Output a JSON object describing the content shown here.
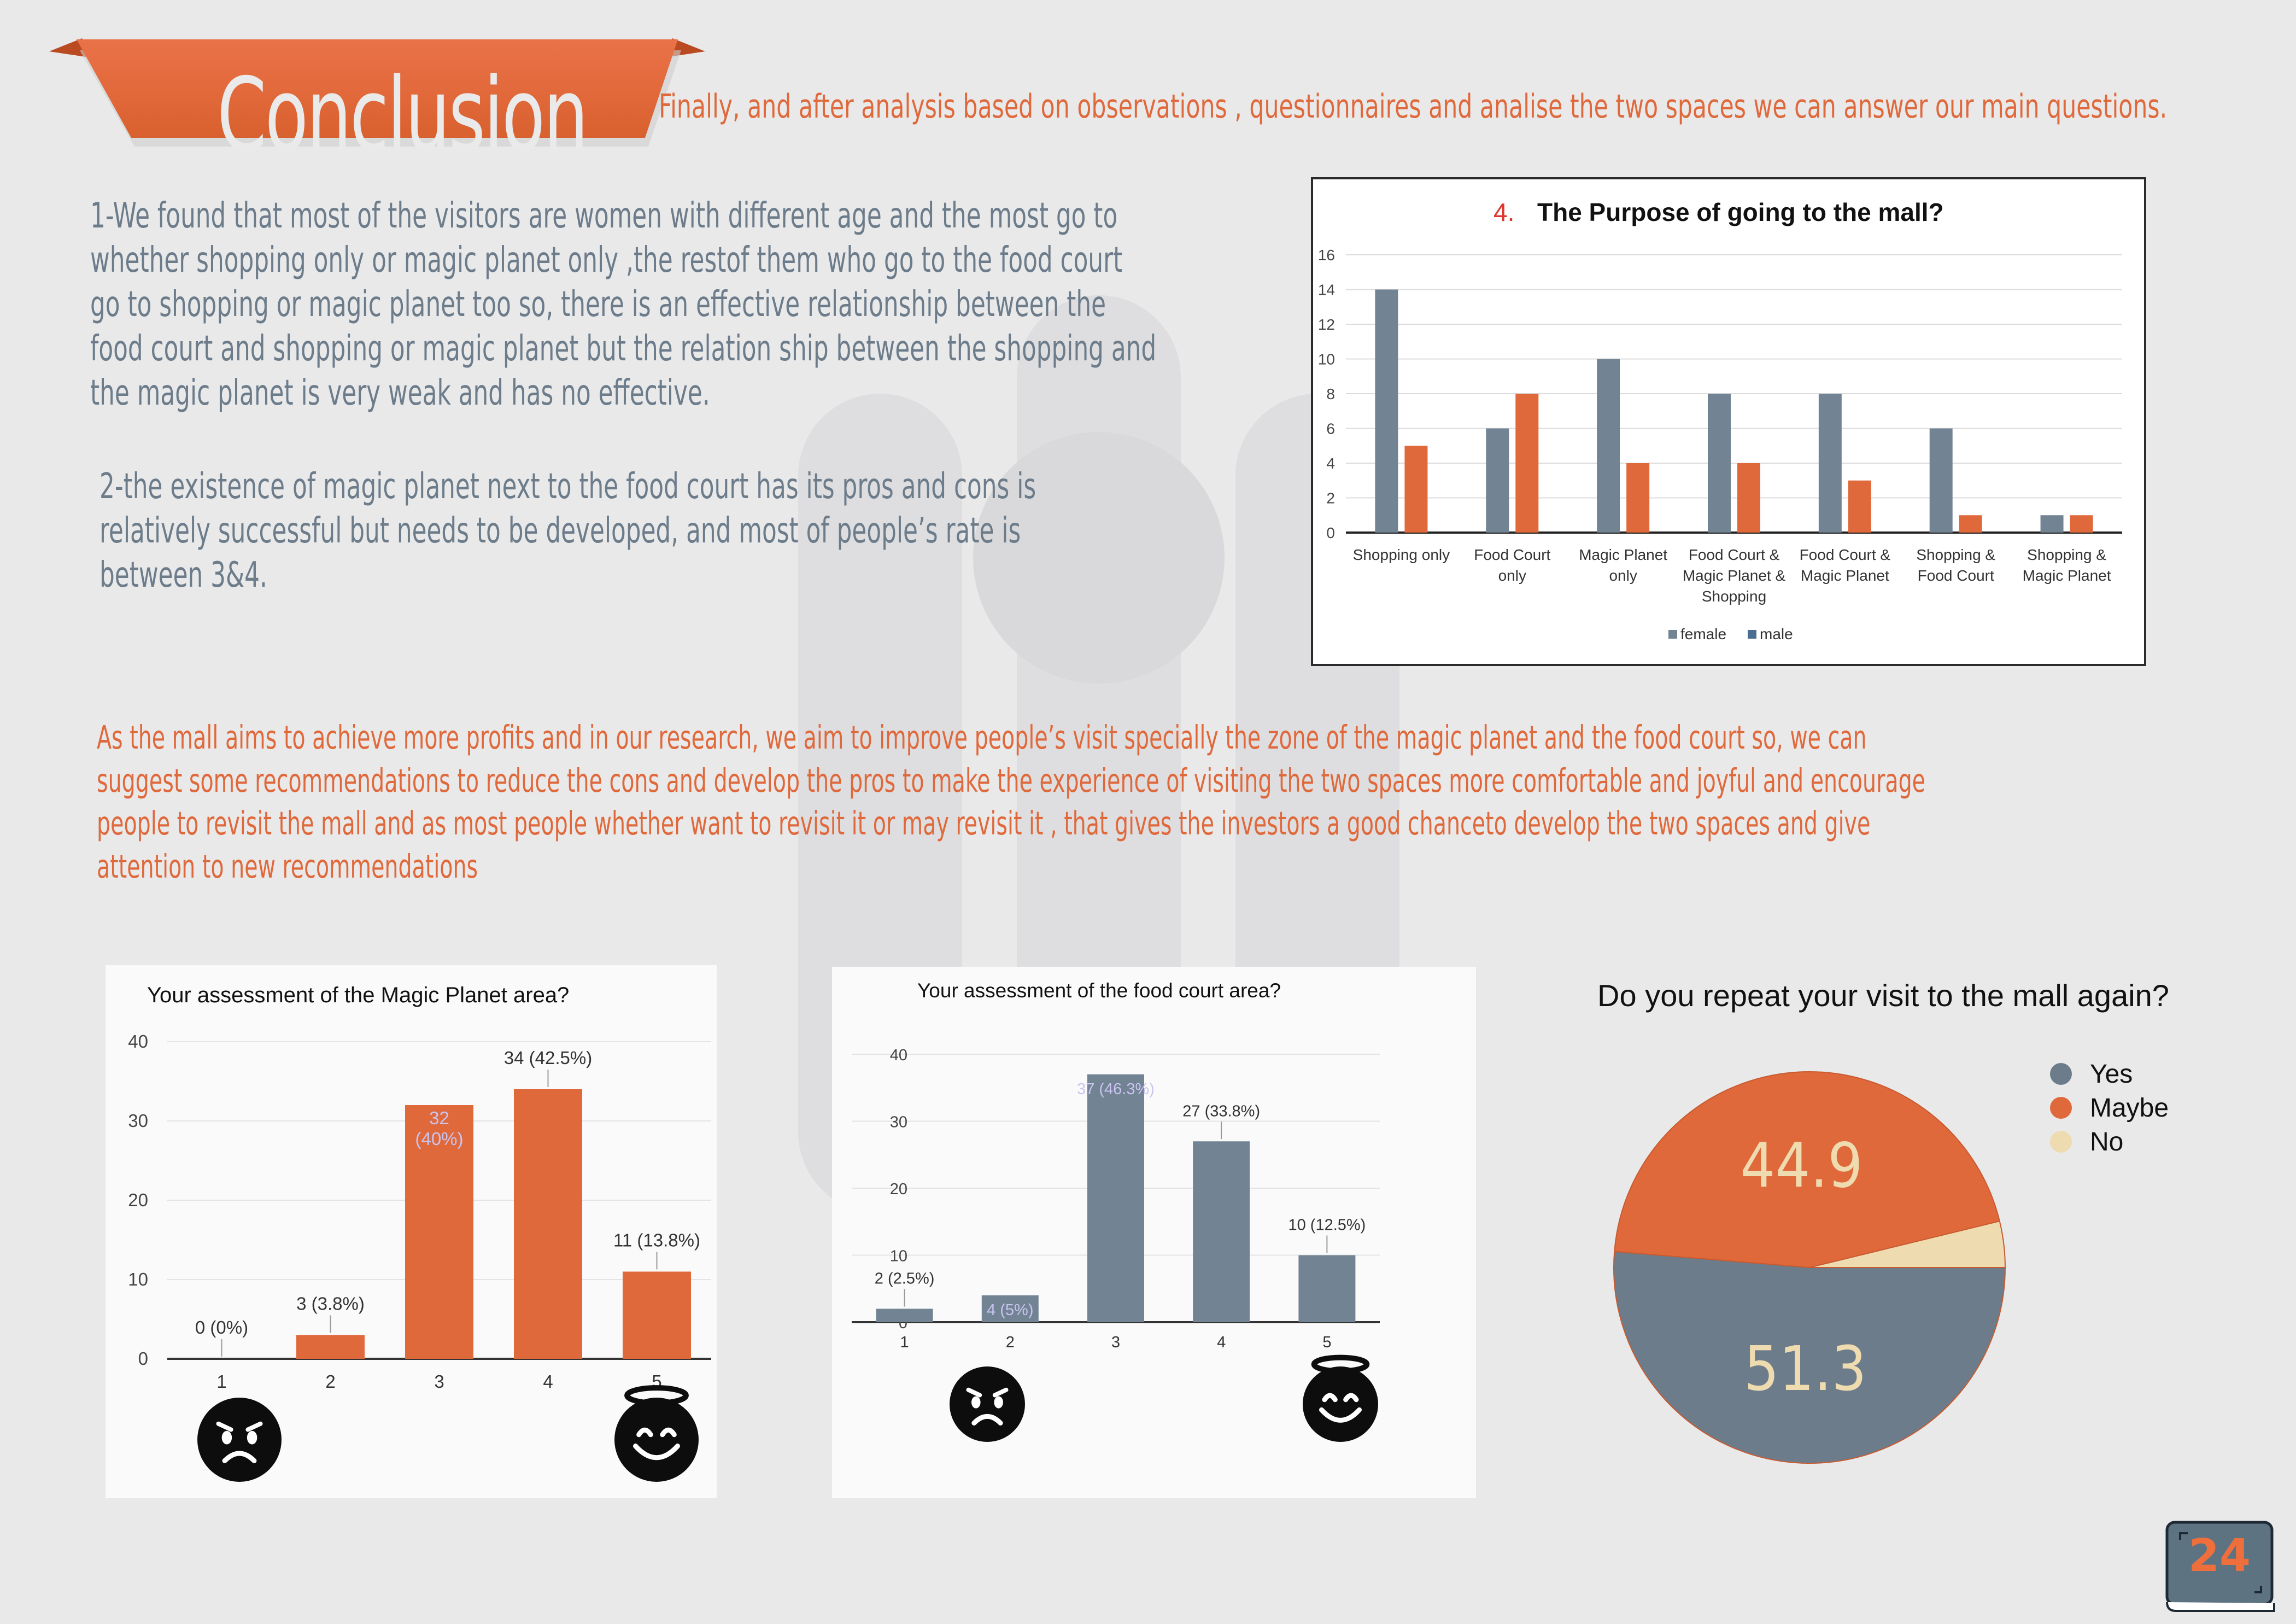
{
  "page": {
    "title": "Conclusion",
    "intro": "Finally, and after analysis based on observations , questionnaires and analise the two spaces we can answer our main questions.",
    "paragraph1_lines": [
      "1-We found that most of the visitors are women with different age and the most go to",
      "whether shopping only or magic planet only ,the restof them who go to the food court",
      "go to shopping or magic planet too so, there is an effective relationship between the",
      "food court and shopping or magic planet but the relation ship between the shopping and",
      "the magic planet is very weak and has no effective."
    ],
    "paragraph2_lines": [
      "2-the existence of magic planet next to the food court has its pros and cons is",
      "relatively successful but needs to be developed, and most of people’s rate is",
      "between 3&4."
    ],
    "paragraph3_lines": [
      "As the mall aims to achieve more profits and in our research, we aim to improve people’s visit specially the zone of the magic planet and the food court so, we can",
      "suggest some recommendations to reduce the cons and develop the pros to make the experience of visiting the two spaces more comfortable and joyful and encourage",
      "people to revisit the mall and as most people whether want to revisit it or may revisit it , that gives the investors a good chanceto develop the two spaces and give",
      "attention to new recommendations"
    ],
    "page_number": "24"
  },
  "colors": {
    "orange": "#e0693c",
    "slate": "#6c7c8a",
    "slate_bar": "#728393",
    "cream": "#eedbb0",
    "background": "#e9e9ea"
  },
  "chart_data": [
    {
      "id": "purpose",
      "type": "bar",
      "title_number": "4.",
      "title": "The Purpose of going to the mall?",
      "categories": [
        [
          "Shopping only"
        ],
        [
          "Food Court",
          "only"
        ],
        [
          "Magic Planet",
          "only"
        ],
        [
          "Food Court &",
          "Magic Planet &",
          "Shopping"
        ],
        [
          "Food Court &",
          "Magic Planet"
        ],
        [
          "Shopping &",
          "Food Court"
        ],
        [
          "Shopping &",
          "Magic Planet"
        ]
      ],
      "series": [
        {
          "name": "female",
          "values": [
            14,
            6,
            10,
            8,
            8,
            6,
            1
          ]
        },
        {
          "name": "male",
          "values": [
            5,
            8,
            4,
            4,
            3,
            1,
            1
          ]
        }
      ],
      "ylim": [
        0,
        16
      ],
      "yticks": [
        0,
        2,
        4,
        6,
        8,
        10,
        12,
        14,
        16
      ],
      "legend_position": "bottom"
    },
    {
      "id": "magic",
      "type": "bar",
      "title": "Your assessment of the Magic Planet area?",
      "categories": [
        "1",
        "2",
        "3",
        "4",
        "5"
      ],
      "values": [
        0,
        3,
        32,
        34,
        11
      ],
      "labels": [
        "0 (0%)",
        "3 (3.8%)",
        "32 (40%)",
        "34 (42.5%)",
        "11 (13.8%)"
      ],
      "ylim": [
        0,
        40
      ],
      "yticks": [
        0,
        10,
        20,
        30,
        40
      ]
    },
    {
      "id": "food",
      "type": "bar",
      "title": "Your assessment of the food court area?",
      "categories": [
        "1",
        "2",
        "3",
        "4",
        "5"
      ],
      "values": [
        2,
        4,
        37,
        27,
        10
      ],
      "labels": [
        "2 (2.5%)",
        "4 (5%)",
        "37 (46.3%)",
        "27 (33.8%)",
        "10 (12.5%)"
      ],
      "ylim": [
        0,
        40
      ],
      "yticks": [
        0,
        10,
        20,
        30,
        40
      ]
    },
    {
      "id": "repeat",
      "type": "pie",
      "title": "Do you repeat your visit to the mall again?",
      "slices": [
        {
          "label": "Yes",
          "value": 51.3,
          "display": "51.3"
        },
        {
          "label": "Maybe",
          "value": 44.9,
          "display": "44.9"
        },
        {
          "label": "No",
          "value": 3.8,
          "display": ""
        }
      ],
      "legend_position": "right"
    }
  ]
}
